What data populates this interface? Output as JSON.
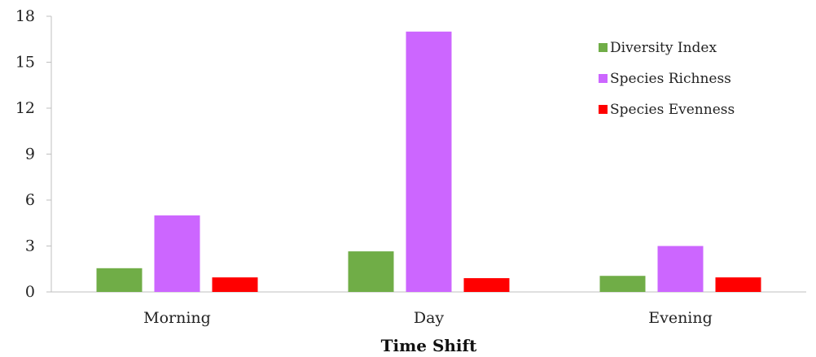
{
  "chart_data": {
    "type": "bar",
    "categories": [
      "Morning",
      "Day",
      "Evening"
    ],
    "series": [
      {
        "name": "Diversity Index",
        "color": "#70ad47",
        "values": [
          1.55,
          2.65,
          1.05
        ]
      },
      {
        "name": "Species Richness",
        "color": "#cc66ff",
        "values": [
          5,
          17,
          3
        ]
      },
      {
        "name": "Species Evenness",
        "color": "#ff0000",
        "values": [
          0.95,
          0.9,
          0.95
        ]
      }
    ],
    "title": "",
    "xlabel": "Time Shift",
    "ylabel": "",
    "ylim": [
      0,
      18
    ],
    "yticks": [
      0,
      3,
      6,
      9,
      12,
      15,
      18
    ],
    "grid": false,
    "legend": "top-right"
  }
}
